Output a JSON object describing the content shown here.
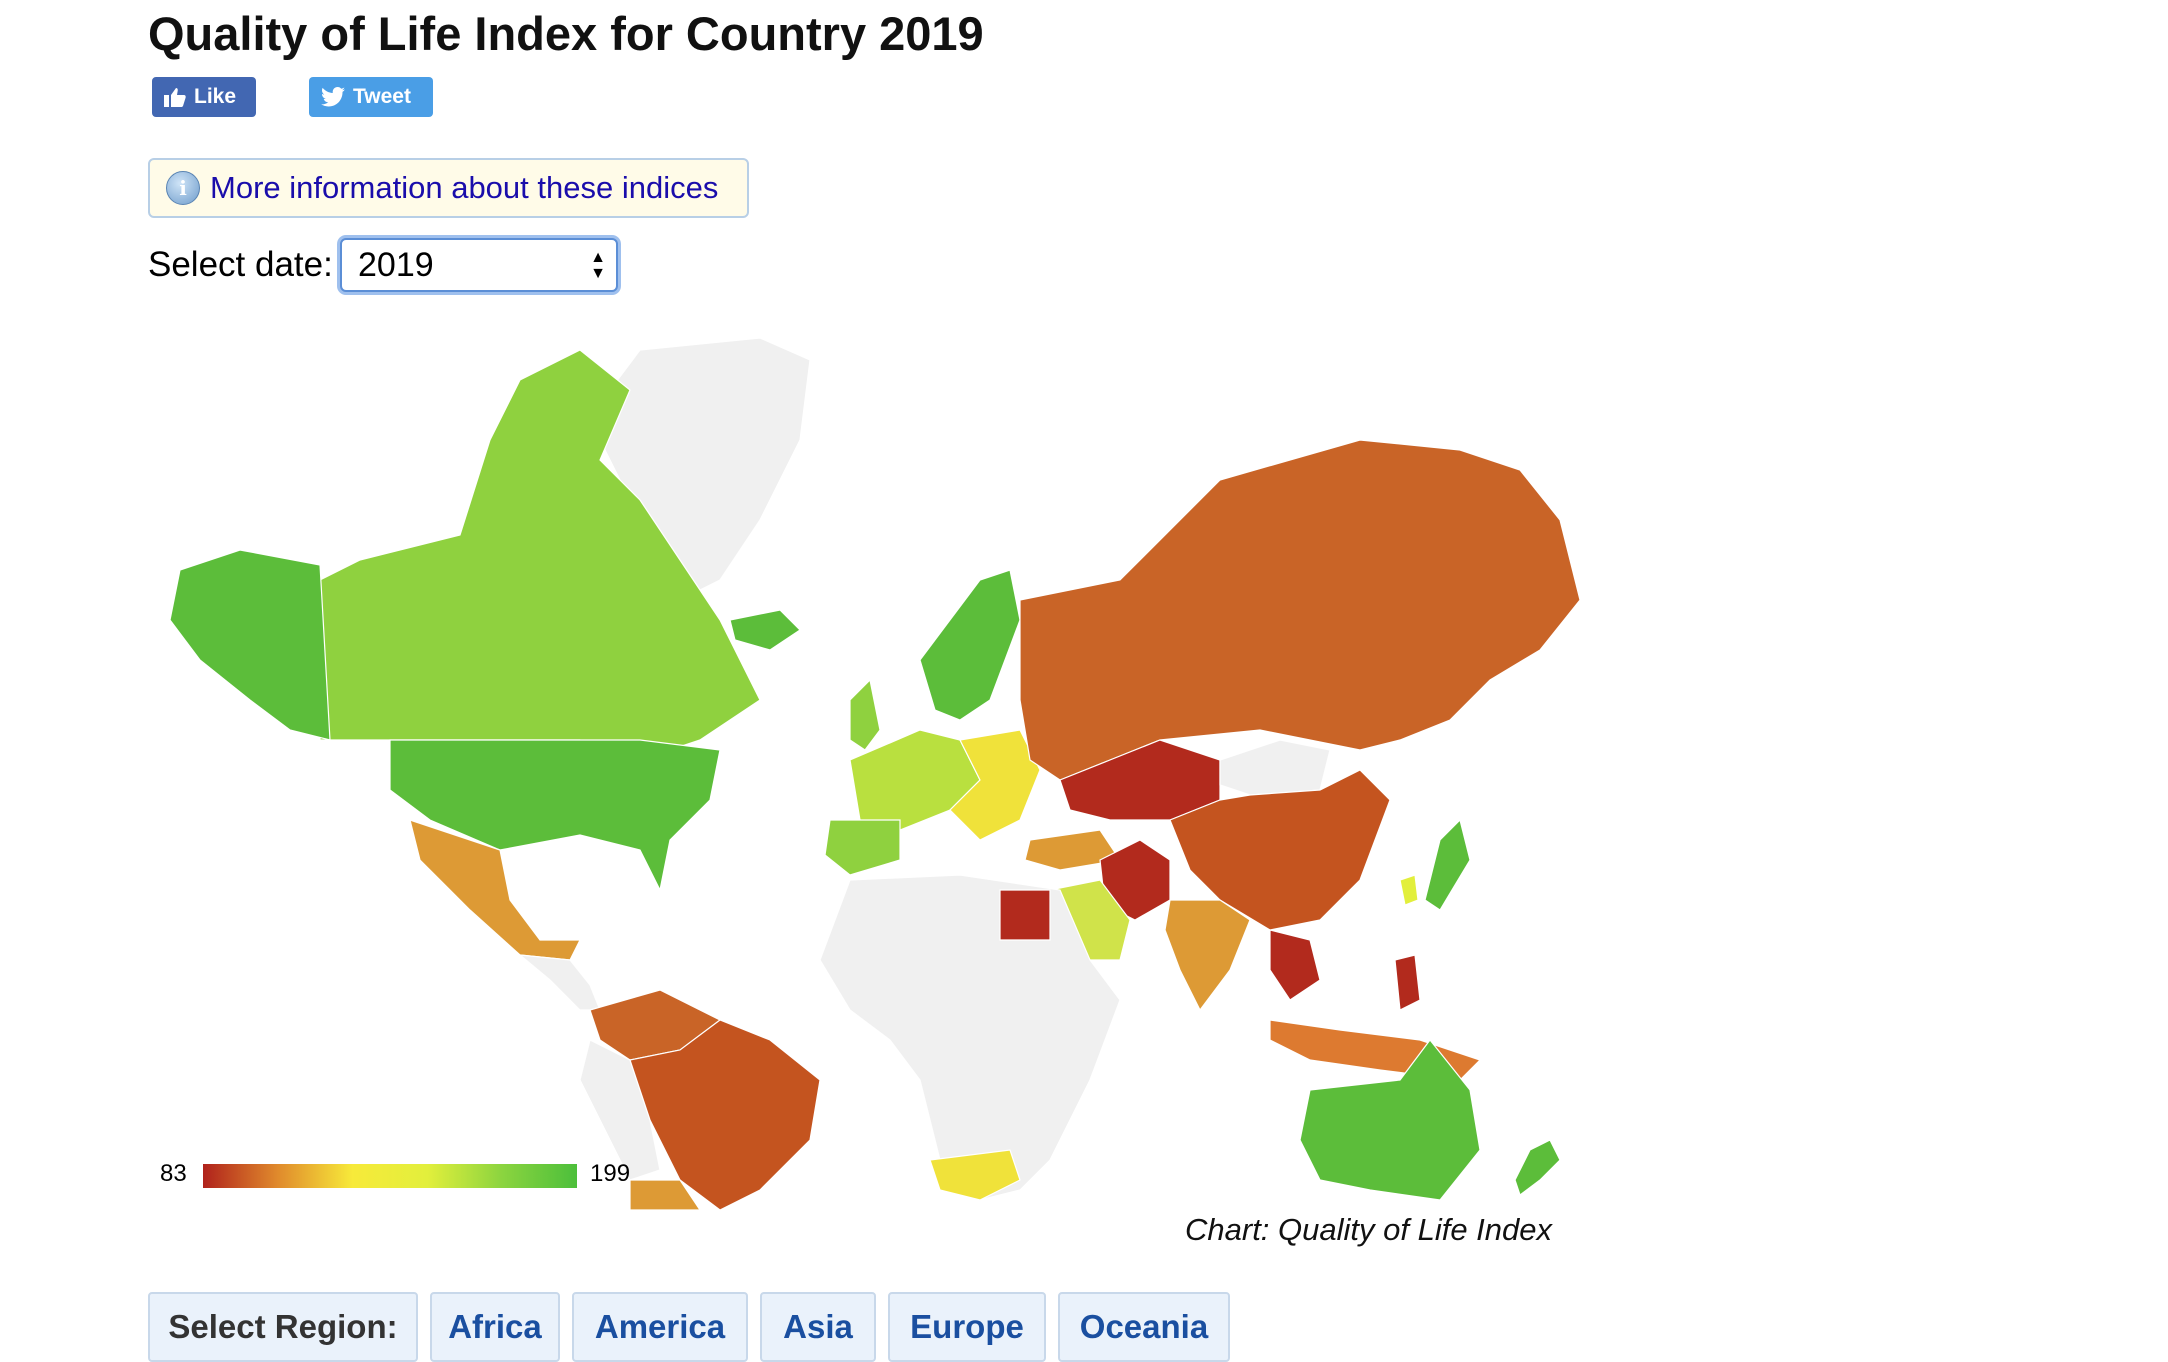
{
  "page": {
    "title": "Quality of Life Index for Country 2019"
  },
  "social": {
    "like_label": "Like",
    "tweet_label": "Tweet"
  },
  "info": {
    "link_text": "More information about these indices"
  },
  "date_selector": {
    "label": "Select date:",
    "selected": "2019"
  },
  "legend": {
    "min": "83",
    "max": "199",
    "low_color": "#b0221c",
    "mid_color": "#f7ea3a",
    "high_color": "#4cbf3b"
  },
  "caption": "Chart: Quality of Life Index",
  "regions": {
    "label": "Select Region:",
    "items": [
      "Africa",
      "America",
      "Asia",
      "Europe",
      "Oceania"
    ]
  },
  "colors": {
    "no_data": "#f0f0f0",
    "green": "#5cbd3a",
    "light_green": "#8fd13f",
    "yellow": "#f0e23a",
    "orange": "#dd9a35",
    "dark_orange": "#c96427",
    "red": "#b22a1d"
  }
}
